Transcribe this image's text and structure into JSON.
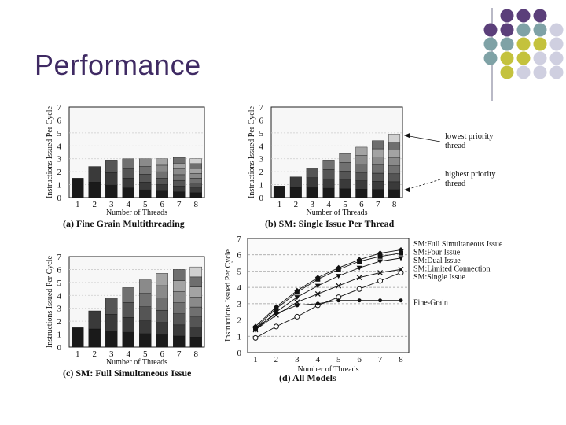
{
  "slide": {
    "title": "Performance"
  },
  "colors": {
    "title": "#3f2a63",
    "purple": "#5b3f7a",
    "teal": "#7fa2a6",
    "olive": "#c4c23d",
    "lavender": "#cfcfe0"
  },
  "chart_data": [
    {
      "id": "a",
      "type": "bar",
      "title": "(a) Fine Grain Multithreading",
      "xlabel": "Number of Threads",
      "ylabel": "Instructions Issued Per Cycle",
      "categories": [
        "1",
        "2",
        "3",
        "4",
        "5",
        "6",
        "7",
        "8"
      ],
      "values": [
        1.5,
        2.4,
        2.9,
        3.0,
        3.0,
        3.0,
        3.1,
        3.0
      ],
      "ylim": [
        0,
        7
      ],
      "yticks": [
        "0",
        "1",
        "2",
        "3",
        "4",
        "5",
        "6",
        "7"
      ]
    },
    {
      "id": "b",
      "type": "bar",
      "title": "(b) SM: Single Issue Per Thread",
      "xlabel": "Number of Threads",
      "ylabel": "Instructions Issued Per Cycle",
      "categories": [
        "1",
        "2",
        "3",
        "4",
        "5",
        "6",
        "7",
        "8"
      ],
      "values": [
        0.9,
        1.6,
        2.3,
        2.9,
        3.4,
        3.9,
        4.4,
        4.9
      ],
      "ylim": [
        0,
        7
      ],
      "yticks": [
        "0",
        "1",
        "2",
        "3",
        "4",
        "5",
        "6",
        "7"
      ],
      "annotations": [
        {
          "text": [
            "lowest priority",
            "thread"
          ],
          "value": 4.8
        },
        {
          "text": [
            "highest priority",
            "thread"
          ],
          "value": 0.6
        }
      ]
    },
    {
      "id": "c",
      "type": "bar",
      "title": "(c) SM: Full Simultaneous Issue",
      "xlabel": "Number of Threads",
      "ylabel": "Instructions Issued Per Cycle",
      "categories": [
        "1",
        "2",
        "3",
        "4",
        "5",
        "6",
        "7",
        "8"
      ],
      "values": [
        1.5,
        2.8,
        3.8,
        4.6,
        5.2,
        5.7,
        6.0,
        6.2
      ],
      "ylim": [
        0,
        7
      ],
      "yticks": [
        "0",
        "1",
        "2",
        "3",
        "4",
        "5",
        "6",
        "7"
      ]
    },
    {
      "id": "d",
      "type": "line",
      "title": "(d) All Models",
      "xlabel": "Number of Threads",
      "ylabel": "Instructions Issued Per Cycle",
      "x": [
        1,
        2,
        3,
        4,
        5,
        6,
        7,
        8
      ],
      "ylim": [
        0,
        7
      ],
      "yticks": [
        "0",
        "1",
        "2",
        "3",
        "4",
        "5",
        "6",
        "7"
      ],
      "series": [
        {
          "name": "SM:Full Simultaneous Issue",
          "marker": "diamond",
          "values": [
            1.6,
            2.8,
            3.8,
            4.6,
            5.2,
            5.7,
            6.1,
            6.3
          ]
        },
        {
          "name": "SM:Four Issue",
          "marker": "square",
          "values": [
            1.5,
            2.7,
            3.7,
            4.5,
            5.1,
            5.6,
            5.9,
            6.1
          ]
        },
        {
          "name": "SM:Dual Issue",
          "marker": "triangle",
          "values": [
            1.4,
            2.5,
            3.4,
            4.1,
            4.7,
            5.2,
            5.6,
            5.8
          ]
        },
        {
          "name": "SM:Limited Connection",
          "marker": "x",
          "values": [
            1.4,
            2.3,
            3.1,
            3.6,
            4.1,
            4.6,
            4.9,
            5.1
          ]
        },
        {
          "name": "SM:Single Issue",
          "marker": "circle",
          "values": [
            0.9,
            1.6,
            2.2,
            2.9,
            3.4,
            3.9,
            4.4,
            4.9
          ]
        },
        {
          "name": "Fine-Grain",
          "marker": "dot",
          "values": [
            1.5,
            2.4,
            2.9,
            3.0,
            3.2,
            3.2,
            3.2,
            3.2
          ]
        }
      ]
    }
  ]
}
